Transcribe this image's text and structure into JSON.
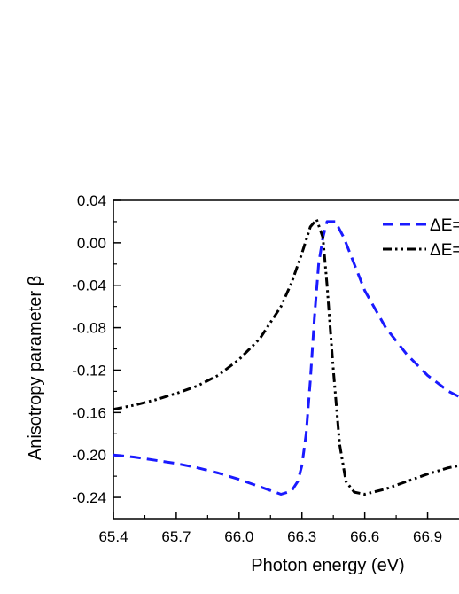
{
  "chart_data": {
    "type": "line",
    "xlabel": "Photon energy (eV)",
    "ylabel": "Anisotropy parameter β",
    "xlim": [
      65.4,
      67.05
    ],
    "ylim": [
      -0.26,
      0.04
    ],
    "xticks": [
      "65.4",
      "65.7",
      "66.0",
      "66.3",
      "66.6",
      "66.9"
    ],
    "yticks": [
      "0.04",
      "0.00",
      "-0.04",
      "-0.08",
      "-0.12",
      "-0.16",
      "-0.20",
      "-0.24"
    ],
    "grid": false,
    "legend_position": "top-right",
    "series": [
      {
        "name": "ΔE=",
        "color": "#1a1aff",
        "dash": "dashed",
        "points": [
          [
            65.4,
            -0.2
          ],
          [
            65.5,
            -0.202
          ],
          [
            65.6,
            -0.205
          ],
          [
            65.7,
            -0.208
          ],
          [
            65.8,
            -0.212
          ],
          [
            65.9,
            -0.217
          ],
          [
            66.0,
            -0.223
          ],
          [
            66.1,
            -0.23
          ],
          [
            66.2,
            -0.237
          ],
          [
            66.25,
            -0.234
          ],
          [
            66.28,
            -0.225
          ],
          [
            66.3,
            -0.21
          ],
          [
            66.32,
            -0.18
          ],
          [
            66.34,
            -0.13
          ],
          [
            66.36,
            -0.07
          ],
          [
            66.38,
            -0.02
          ],
          [
            66.4,
            0.005
          ],
          [
            66.42,
            0.02
          ],
          [
            66.46,
            0.02
          ],
          [
            66.5,
            0.005
          ],
          [
            66.55,
            -0.02
          ],
          [
            66.6,
            -0.045
          ],
          [
            66.7,
            -0.08
          ],
          [
            66.8,
            -0.105
          ],
          [
            66.9,
            -0.125
          ],
          [
            67.0,
            -0.14
          ],
          [
            67.05,
            -0.145
          ]
        ]
      },
      {
        "name": "ΔE=",
        "color": "#000000",
        "dash": "dashdotdot",
        "points": [
          [
            65.4,
            -0.157
          ],
          [
            65.5,
            -0.153
          ],
          [
            65.6,
            -0.148
          ],
          [
            65.7,
            -0.142
          ],
          [
            65.8,
            -0.135
          ],
          [
            65.9,
            -0.125
          ],
          [
            66.0,
            -0.11
          ],
          [
            66.1,
            -0.09
          ],
          [
            66.2,
            -0.06
          ],
          [
            66.25,
            -0.038
          ],
          [
            66.3,
            -0.01
          ],
          [
            66.34,
            0.015
          ],
          [
            66.37,
            0.022
          ],
          [
            66.4,
            0.005
          ],
          [
            66.42,
            -0.04
          ],
          [
            66.45,
            -0.12
          ],
          [
            66.48,
            -0.19
          ],
          [
            66.51,
            -0.225
          ],
          [
            66.55,
            -0.235
          ],
          [
            66.6,
            -0.237
          ],
          [
            66.7,
            -0.232
          ],
          [
            66.8,
            -0.225
          ],
          [
            66.9,
            -0.218
          ],
          [
            67.0,
            -0.212
          ],
          [
            67.05,
            -0.21
          ]
        ]
      }
    ]
  }
}
